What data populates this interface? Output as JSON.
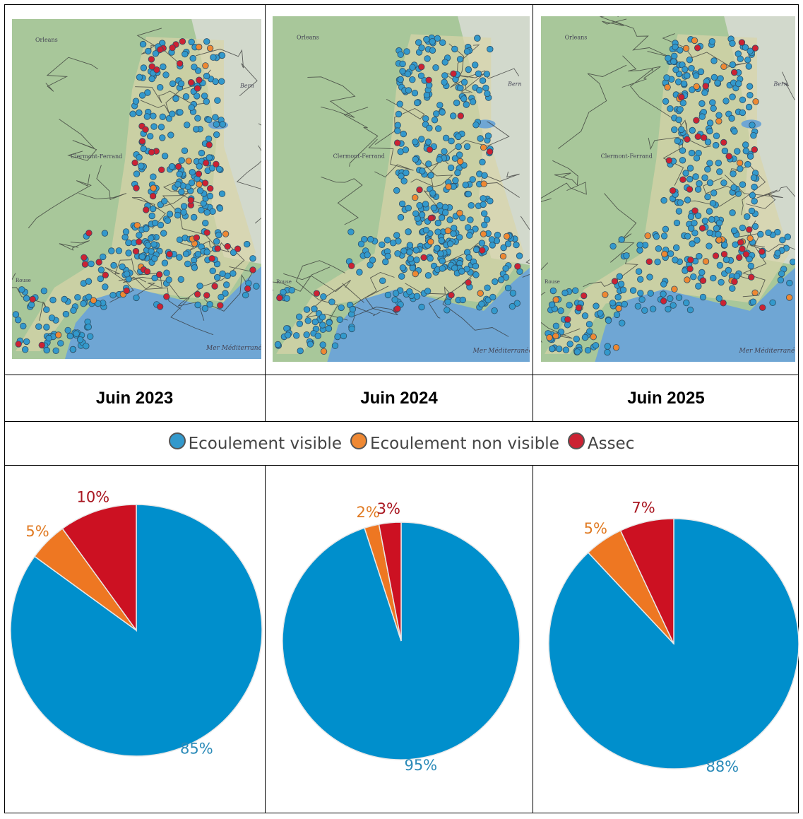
{
  "years": [
    "Juin 2023",
    "Juin 2024",
    "Juin 2025"
  ],
  "map_labels": {
    "orleans": "Orleans",
    "clermont": "Clermont-Ferrand",
    "bern": "Bern",
    "rouse": "Rouse",
    "sea": "Mer Méditerranée"
  },
  "legend": [
    {
      "label": "Ecoulement visible",
      "color": "#3399cc"
    },
    {
      "label": "Ecoulement non visible",
      "color": "#ee8833"
    },
    {
      "label": "Assec",
      "color": "#cc2233"
    }
  ],
  "chart_data": [
    {
      "type": "pie",
      "title": "Juin 2023",
      "categories": [
        "Ecoulement visible",
        "Ecoulement non visible",
        "Assec"
      ],
      "values": [
        85,
        5,
        10
      ],
      "labels": [
        "85%",
        "5%",
        "10%"
      ],
      "colors": [
        "#008fcc",
        "#ee7722",
        "#cc1122"
      ],
      "label_colors": [
        "#2a8ab8",
        "#e07a22",
        "#a8151f"
      ]
    },
    {
      "type": "pie",
      "title": "Juin 2024",
      "categories": [
        "Ecoulement visible",
        "Ecoulement non visible",
        "Assec"
      ],
      "values": [
        95,
        2,
        3
      ],
      "labels": [
        "95%",
        "2%",
        "3%"
      ],
      "colors": [
        "#008fcc",
        "#ee7722",
        "#cc1122"
      ],
      "label_colors": [
        "#2a8ab8",
        "#e07a22",
        "#a8151f"
      ]
    },
    {
      "type": "pie",
      "title": "Juin 2025",
      "categories": [
        "Ecoulement visible",
        "Ecoulement non visible",
        "Assec"
      ],
      "values": [
        88,
        5,
        7
      ],
      "labels": [
        "88%",
        "5%",
        "7%"
      ],
      "colors": [
        "#008fcc",
        "#ee7722",
        "#cc1122"
      ],
      "label_colors": [
        "#2a8ab8",
        "#e07a22",
        "#a8151f"
      ]
    }
  ],
  "map_dots": [
    {
      "visible": 340,
      "non_visible": 14,
      "assec": 60
    },
    {
      "visible": 420,
      "non_visible": 14,
      "assec": 20
    },
    {
      "visible": 360,
      "non_visible": 30,
      "assec": 40
    }
  ]
}
